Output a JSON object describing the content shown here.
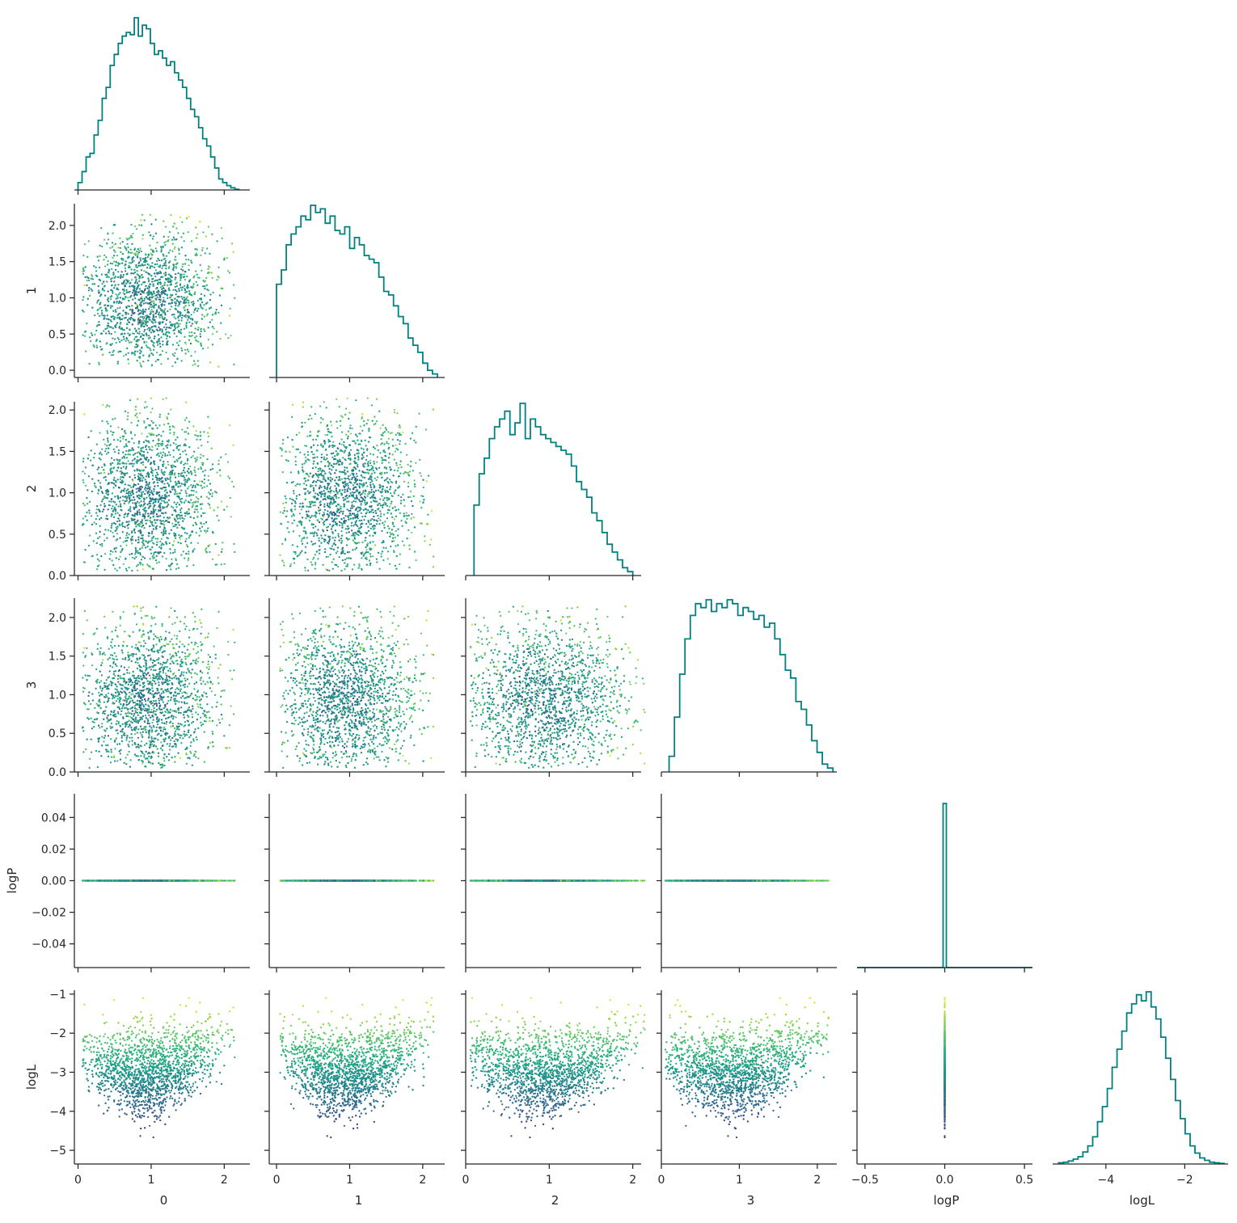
{
  "chart_data": {
    "type": "scatter",
    "title": "",
    "variables": [
      "0",
      "1",
      "2",
      "3",
      "logP",
      "logL"
    ],
    "axis_labels": {
      "x": [
        "0",
        "1",
        "2",
        "3",
        "logP",
        "logL"
      ],
      "y": [
        "",
        "1",
        "2",
        "3",
        "logP",
        "logL"
      ]
    },
    "ranges": {
      "0": [
        -0.05,
        2.35
      ],
      "1": [
        -0.1,
        2.3
      ],
      "2": [
        0.0,
        2.1
      ],
      "3": [
        0.0,
        2.25
      ],
      "logP": [
        -0.055,
        0.055
      ],
      "logL": [
        -5.35,
        -0.9
      ]
    },
    "ticks": {
      "0": {
        "values": [
          0,
          1,
          2
        ],
        "labels": [
          "0",
          "1",
          "2"
        ]
      },
      "1": {
        "values": [
          0,
          0.5,
          1,
          1.5,
          2
        ],
        "labels": [
          "0.0",
          "0.5",
          "1.0",
          "1.5",
          "2.0"
        ],
        "xlabels": [
          "0",
          "1",
          "2"
        ],
        "xvalues": [
          0,
          1,
          2
        ]
      },
      "2": {
        "values": [
          0,
          0.5,
          1,
          1.5,
          2
        ],
        "labels": [
          "0.0",
          "0.5",
          "1.0",
          "1.5",
          "2.0"
        ],
        "xlabels": [
          "0",
          "1",
          "2"
        ],
        "xvalues": [
          0,
          1,
          2
        ]
      },
      "3": {
        "values": [
          0,
          0.5,
          1,
          1.5,
          2
        ],
        "labels": [
          "0.0",
          "0.5",
          "1.0",
          "1.5",
          "2.0"
        ],
        "xlabels": [
          "0",
          "1",
          "2"
        ],
        "xvalues": [
          0,
          1,
          2
        ]
      },
      "logP": {
        "values": [
          -0.04,
          -0.02,
          0,
          0.02,
          0.04
        ],
        "labels": [
          "−0.04",
          "−0.02",
          "0.00",
          "0.02",
          "0.04"
        ],
        "xlabels": [
          "−0.5",
          "0.0",
          "0.5"
        ],
        "xvalues": [
          -0.5,
          0,
          0.5
        ],
        "xrange": [
          -0.55,
          0.55
        ]
      },
      "logL": {
        "values": [
          -5,
          -4,
          -3,
          -2,
          -1
        ],
        "labels": [
          "−5",
          "−4",
          "−3",
          "−2",
          "−1"
        ],
        "xlabels": [
          "−4",
          "−2"
        ],
        "xvalues": [
          -4,
          -2
        ],
        "xrange": [
          -5.35,
          -0.9
        ]
      }
    },
    "histograms": {
      "0": {
        "bins": [
          0.0,
          2.2
        ],
        "counts": [
          10,
          25,
          45,
          50,
          75,
          95,
          125,
          140,
          170,
          185,
          200,
          210,
          215,
          212,
          235,
          210,
          225,
          220,
          200,
          185,
          190,
          180,
          170,
          175,
          160,
          150,
          140,
          125,
          110,
          100,
          85,
          70,
          60,
          45,
          30,
          15,
          10,
          6,
          3,
          1
        ]
      },
      "1": {
        "bins": [
          0.0,
          2.2
        ],
        "counts": [
          130,
          150,
          185,
          200,
          210,
          225,
          220,
          240,
          230,
          235,
          215,
          225,
          205,
          200,
          210,
          180,
          195,
          185,
          170,
          165,
          160,
          140,
          120,
          115,
          100,
          85,
          75,
          55,
          45,
          35,
          20,
          10,
          5
        ]
      },
      "2": {
        "bins": [
          0.1,
          2.0
        ],
        "counts": [
          90,
          130,
          150,
          175,
          190,
          200,
          210,
          180,
          195,
          220,
          175,
          200,
          190,
          180,
          175,
          170,
          165,
          160,
          155,
          140,
          120,
          110,
          100,
          80,
          70,
          55,
          40,
          30,
          20,
          10,
          5
        ]
      },
      "3": {
        "bins": [
          0.1,
          2.2
        ],
        "counts": [
          20,
          70,
          125,
          170,
          200,
          215,
          210,
          220,
          205,
          215,
          210,
          220,
          215,
          200,
          210,
          205,
          195,
          200,
          185,
          190,
          170,
          150,
          130,
          120,
          90,
          80,
          60,
          40,
          25,
          10,
          5
        ]
      },
      "logP": {
        "bins": [
          -0.01,
          0.01
        ],
        "counts": [
          1
        ]
      },
      "logL": {
        "bins": [
          -5.2,
          -1.0
        ],
        "counts": [
          2,
          3,
          5,
          8,
          12,
          20,
          30,
          45,
          70,
          95,
          125,
          160,
          190,
          220,
          250,
          265,
          280,
          270,
          285,
          260,
          240,
          210,
          175,
          140,
          105,
          75,
          50,
          30,
          18,
          10,
          6,
          3,
          2,
          1
        ]
      }
    },
    "colormap": "viridis",
    "color_by": "logL",
    "histogram_color": "#008080",
    "marker_size": "small",
    "grid": false,
    "legend": "none"
  }
}
